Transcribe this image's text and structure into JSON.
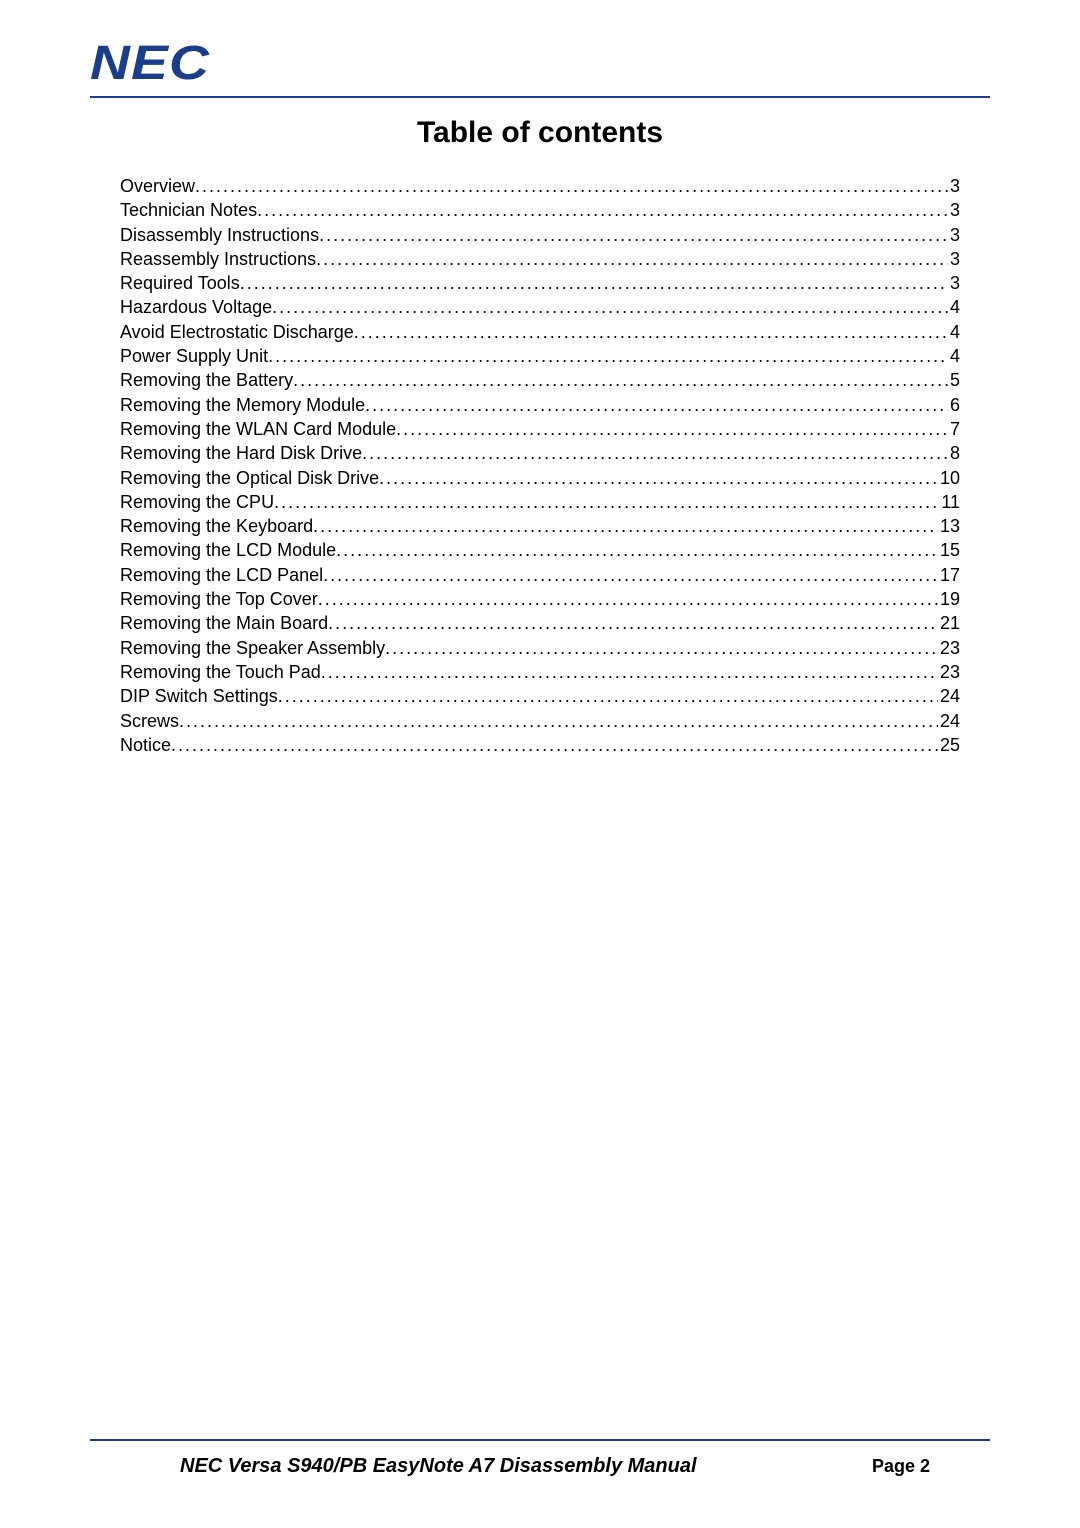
{
  "colors": {
    "brand": "#1b3e8c",
    "text": "#000000",
    "background": "#ffffff"
  },
  "typography": {
    "base_family": "Arial",
    "title_size_pt": 22,
    "title_weight": "bold",
    "body_size_pt": 13,
    "logo_size_pt": 36,
    "logo_weight": "900",
    "logo_style": "italic"
  },
  "header": {
    "logo_text": "NEC"
  },
  "title": "Table of contents",
  "toc": {
    "entries": [
      {
        "label": "Overview",
        "page": "3"
      },
      {
        "label": "Technician Notes",
        "page": "3"
      },
      {
        "label": "Disassembly Instructions",
        "page": "3"
      },
      {
        "label": "Reassembly Instructions",
        "page": "3"
      },
      {
        "label": "Required Tools",
        "page": "3"
      },
      {
        "label": "Hazardous Voltage",
        "page": "4"
      },
      {
        "label": "Avoid Electrostatic Discharge",
        "page": "4"
      },
      {
        "label": "Power Supply Unit",
        "page": "4"
      },
      {
        "label": "Removing the Battery",
        "page": "5"
      },
      {
        "label": "Removing the Memory Module",
        "page": "6"
      },
      {
        "label": "Removing the WLAN Card Module",
        "page": "7"
      },
      {
        "label": "Removing the Hard Disk Drive",
        "page": "8"
      },
      {
        "label": "Removing the Optical Disk Drive",
        "page": "10"
      },
      {
        "label": "Removing the CPU",
        "page": "11"
      },
      {
        "label": "Removing the Keyboard",
        "page": "13"
      },
      {
        "label": "Removing the LCD Module",
        "page": "15"
      },
      {
        "label": "Removing the LCD Panel",
        "page": "17"
      },
      {
        "label": "Removing the Top Cover",
        "page": "19"
      },
      {
        "label": "Removing the Main Board",
        "page": "21"
      },
      {
        "label": "Removing the Speaker Assembly",
        "page": "23"
      },
      {
        "label": "Removing the Touch Pad",
        "page": "23"
      },
      {
        "label": "DIP Switch Settings",
        "page": "24"
      },
      {
        "label": "Screws",
        "page": "24"
      },
      {
        "label": "Notice",
        "page": "25"
      }
    ]
  },
  "footer": {
    "title": "NEC Versa S940/PB EasyNote A7 Disassembly Manual",
    "page_label": "Page 2"
  }
}
